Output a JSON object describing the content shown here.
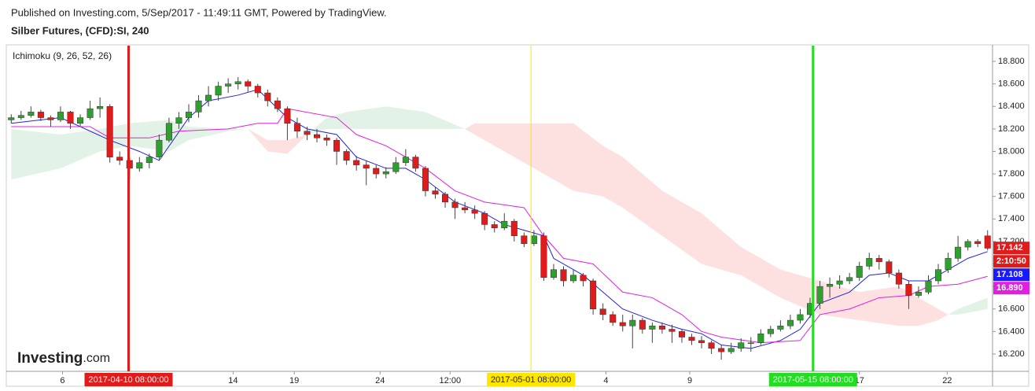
{
  "header": {
    "published": "Published on Investing.com, 5/Sep/2017 - 11:49:11 GMT, Powered by TradingView.",
    "symbol": "Silber Futures, (CFD):SI, 240"
  },
  "logo": {
    "brand": "Investing",
    "suffix": ".com"
  },
  "chart_data": {
    "type": "candlestick",
    "indicator": "Ichimoku (9, 26, 52, 26)",
    "up_color": "#2ea02e",
    "down_color": "#e01b1b",
    "xlim": [
      -0.5,
      99.5
    ],
    "ylim": [
      16.046,
      18.94
    ],
    "yticks": [
      {
        "value": 16.2,
        "label": "16.200"
      },
      {
        "value": 16.4,
        "label": "16.400"
      },
      {
        "value": 16.6,
        "label": "16.600"
      },
      {
        "value": 16.8,
        "label": "16.800"
      },
      {
        "value": 17.0,
        "label": "17.000"
      },
      {
        "value": 17.2,
        "label": "17.200"
      },
      {
        "value": 17.4,
        "label": "17.400"
      },
      {
        "value": 17.6,
        "label": "17.600"
      },
      {
        "value": 17.8,
        "label": "17.800"
      },
      {
        "value": 18.0,
        "label": "18.000"
      },
      {
        "value": 18.2,
        "label": "18.200"
      },
      {
        "value": 18.4,
        "label": "18.400"
      },
      {
        "value": 18.6,
        "label": "18.600"
      },
      {
        "value": 18.8,
        "label": "18.800"
      }
    ],
    "xticks": [
      {
        "value": 5.2,
        "label": "6"
      },
      {
        "value": 22.5,
        "label": "14"
      },
      {
        "value": 28.7,
        "label": "19"
      },
      {
        "value": 37.4,
        "label": "24"
      },
      {
        "value": 44.5,
        "label": "12:00"
      },
      {
        "value": 60.3,
        "label": "4"
      },
      {
        "value": 68.8,
        "label": "9"
      },
      {
        "value": 86.0,
        "label": "17"
      },
      {
        "value": 94.9,
        "label": "22"
      }
    ],
    "markers": [
      {
        "value": 11.9,
        "label": "2017-04-10 08:00:00",
        "color": "#e01b1b"
      },
      {
        "value": 52.7,
        "label": "2017-05-01 08:00:00",
        "color": "#ffe600"
      },
      {
        "value": 81.3,
        "label": "2017-05-15 08:00:00",
        "color": "#22dd22"
      }
    ],
    "candles": [
      [
        18.28,
        18.33,
        18.25,
        18.3
      ],
      [
        18.3,
        18.36,
        18.28,
        18.32
      ],
      [
        18.32,
        18.4,
        18.3,
        18.35
      ],
      [
        18.35,
        18.37,
        18.27,
        18.3
      ],
      [
        18.3,
        18.32,
        18.22,
        18.28
      ],
      [
        18.28,
        18.4,
        18.26,
        18.35
      ],
      [
        18.35,
        18.36,
        18.2,
        18.25
      ],
      [
        18.25,
        18.33,
        18.22,
        18.3
      ],
      [
        18.3,
        18.45,
        18.28,
        18.38
      ],
      [
        18.38,
        18.48,
        18.3,
        18.4
      ],
      [
        18.4,
        18.42,
        17.9,
        17.95
      ],
      [
        17.95,
        18.0,
        17.88,
        17.92
      ],
      [
        17.92,
        17.95,
        17.75,
        17.85
      ],
      [
        17.85,
        17.95,
        17.82,
        17.9
      ],
      [
        17.9,
        17.98,
        17.85,
        17.95
      ],
      [
        17.95,
        18.15,
        17.93,
        18.1
      ],
      [
        18.1,
        18.3,
        18.08,
        18.25
      ],
      [
        18.25,
        18.35,
        18.2,
        18.3
      ],
      [
        18.3,
        18.42,
        18.26,
        18.35
      ],
      [
        18.35,
        18.5,
        18.3,
        18.45
      ],
      [
        18.45,
        18.58,
        18.4,
        18.5
      ],
      [
        18.5,
        18.62,
        18.45,
        18.58
      ],
      [
        18.58,
        18.65,
        18.52,
        18.6
      ],
      [
        18.6,
        18.66,
        18.55,
        18.62
      ],
      [
        18.62,
        18.64,
        18.53,
        18.58
      ],
      [
        18.58,
        18.6,
        18.48,
        18.52
      ],
      [
        18.52,
        18.55,
        18.4,
        18.45
      ],
      [
        18.45,
        18.48,
        18.35,
        18.38
      ],
      [
        18.38,
        18.4,
        18.1,
        18.25
      ],
      [
        18.25,
        18.3,
        18.12,
        18.18
      ],
      [
        18.18,
        18.22,
        18.1,
        18.15
      ],
      [
        18.15,
        18.2,
        18.08,
        18.12
      ],
      [
        18.12,
        18.15,
        18.05,
        18.1
      ],
      [
        18.1,
        18.12,
        17.88,
        18.0
      ],
      [
        18.0,
        18.02,
        17.88,
        17.92
      ],
      [
        17.92,
        17.96,
        17.83,
        17.88
      ],
      [
        17.88,
        17.92,
        17.7,
        17.85
      ],
      [
        17.85,
        17.88,
        17.76,
        17.8
      ],
      [
        17.8,
        17.86,
        17.76,
        17.82
      ],
      [
        17.82,
        17.95,
        17.8,
        17.9
      ],
      [
        17.9,
        18.02,
        17.87,
        17.95
      ],
      [
        17.95,
        17.97,
        17.82,
        17.85
      ],
      [
        17.85,
        17.87,
        17.6,
        17.65
      ],
      [
        17.65,
        17.68,
        17.58,
        17.62
      ],
      [
        17.62,
        17.64,
        17.5,
        17.55
      ],
      [
        17.55,
        17.58,
        17.4,
        17.5
      ],
      [
        17.5,
        17.55,
        17.45,
        17.48
      ],
      [
        17.48,
        17.52,
        17.4,
        17.45
      ],
      [
        17.45,
        17.47,
        17.3,
        17.35
      ],
      [
        17.35,
        17.38,
        17.28,
        17.32
      ],
      [
        17.32,
        17.45,
        17.3,
        17.38
      ],
      [
        17.38,
        17.4,
        17.2,
        17.25
      ],
      [
        17.25,
        17.28,
        17.15,
        17.18
      ],
      [
        17.18,
        17.3,
        17.16,
        17.25
      ],
      [
        17.25,
        17.28,
        16.85,
        16.88
      ],
      [
        16.88,
        17.0,
        16.86,
        16.95
      ],
      [
        16.95,
        16.98,
        16.8,
        16.85
      ],
      [
        16.85,
        16.95,
        16.83,
        16.9
      ],
      [
        16.9,
        16.92,
        16.8,
        16.85
      ],
      [
        16.85,
        16.87,
        16.55,
        16.6
      ],
      [
        16.6,
        16.65,
        16.5,
        16.55
      ],
      [
        16.55,
        16.58,
        16.45,
        16.48
      ],
      [
        16.48,
        16.55,
        16.4,
        16.45
      ],
      [
        16.45,
        16.55,
        16.25,
        16.5
      ],
      [
        16.5,
        16.52,
        16.38,
        16.42
      ],
      [
        16.42,
        16.48,
        16.3,
        16.45
      ],
      [
        16.45,
        16.48,
        16.38,
        16.42
      ],
      [
        16.42,
        16.46,
        16.3,
        16.4
      ],
      [
        16.4,
        16.42,
        16.3,
        16.35
      ],
      [
        16.35,
        16.38,
        16.28,
        16.32
      ],
      [
        16.32,
        16.36,
        16.25,
        16.3
      ],
      [
        16.3,
        16.32,
        16.2,
        16.25
      ],
      [
        16.25,
        16.28,
        16.15,
        16.22
      ],
      [
        16.22,
        16.3,
        16.2,
        16.25
      ],
      [
        16.25,
        16.34,
        16.22,
        16.3
      ],
      [
        16.3,
        16.35,
        16.22,
        16.3
      ],
      [
        16.3,
        16.42,
        16.28,
        16.38
      ],
      [
        16.38,
        16.45,
        16.35,
        16.42
      ],
      [
        16.42,
        16.5,
        16.4,
        16.45
      ],
      [
        16.45,
        16.55,
        16.42,
        16.5
      ],
      [
        16.5,
        16.6,
        16.47,
        16.55
      ],
      [
        16.55,
        16.7,
        16.52,
        16.65
      ],
      [
        16.65,
        16.85,
        16.6,
        16.8
      ],
      [
        16.8,
        16.88,
        16.7,
        16.82
      ],
      [
        16.82,
        16.9,
        16.78,
        16.85
      ],
      [
        16.85,
        16.92,
        16.82,
        16.88
      ],
      [
        16.88,
        17.02,
        16.85,
        16.98
      ],
      [
        16.98,
        17.1,
        16.95,
        17.05
      ],
      [
        17.05,
        17.08,
        16.95,
        17.02
      ],
      [
        17.02,
        17.04,
        16.88,
        16.92
      ],
      [
        16.92,
        16.95,
        16.78,
        16.82
      ],
      [
        16.82,
        16.85,
        16.6,
        16.72
      ],
      [
        16.72,
        16.8,
        16.7,
        16.75
      ],
      [
        16.75,
        16.9,
        16.73,
        16.85
      ],
      [
        16.85,
        17.0,
        16.82,
        16.95
      ],
      [
        16.95,
        17.1,
        16.92,
        17.05
      ],
      [
        17.05,
        17.25,
        17.02,
        17.15
      ],
      [
        17.15,
        17.22,
        17.12,
        17.2
      ],
      [
        17.2,
        17.22,
        17.15,
        17.18
      ],
      [
        17.25,
        17.3,
        17.12,
        17.14
      ]
    ],
    "lines": [
      {
        "color": "#2222dd",
        "x": [
          0,
          5,
          10,
          13,
          15,
          18,
          20,
          23,
          25,
          28,
          30,
          33,
          35,
          38,
          40,
          42,
          45,
          48,
          50,
          52,
          54,
          55,
          58,
          60,
          62,
          65,
          68,
          70,
          72,
          75,
          78,
          80,
          82,
          85,
          87,
          89,
          91,
          93,
          95,
          97,
          99
        ],
        "values": [
          18.25,
          18.3,
          18.1,
          18.0,
          17.92,
          18.3,
          18.45,
          18.5,
          18.55,
          18.3,
          18.2,
          18.15,
          17.95,
          17.85,
          17.85,
          17.75,
          17.55,
          17.45,
          17.35,
          17.3,
          17.25,
          17.05,
          16.9,
          16.75,
          16.6,
          16.5,
          16.42,
          16.38,
          16.28,
          16.25,
          16.32,
          16.42,
          16.65,
          16.75,
          16.9,
          16.92,
          16.85,
          16.85,
          16.95,
          17.05,
          17.11
        ]
      },
      {
        "color": "#e020e0",
        "x": [
          0,
          8,
          10,
          14,
          17,
          22,
          25,
          27,
          28,
          33,
          35,
          38,
          42,
          45,
          48,
          52,
          54,
          56,
          59,
          62,
          65,
          68,
          70,
          72,
          76,
          80,
          82,
          85,
          88,
          91,
          93,
          96,
          99
        ],
        "values": [
          18.22,
          18.22,
          18.12,
          18.12,
          18.18,
          18.2,
          18.25,
          18.25,
          18.38,
          18.3,
          18.15,
          18.05,
          17.85,
          17.65,
          17.55,
          17.5,
          17.25,
          17.05,
          17.0,
          16.75,
          16.7,
          16.55,
          16.4,
          16.35,
          16.3,
          16.32,
          16.55,
          16.6,
          16.7,
          16.72,
          16.8,
          16.82,
          16.89
        ]
      }
    ],
    "cloud": {
      "colors": [
        "rgba(60,160,80,0.14)",
        "rgba(240,60,60,0.16)"
      ],
      "x": [
        0,
        5,
        9,
        12,
        16,
        18,
        22,
        24,
        26,
        28,
        30,
        32,
        34,
        38,
        42,
        46,
        47,
        52,
        57,
        60,
        62,
        66,
        70,
        74,
        78,
        82,
        86,
        90,
        92,
        94,
        95,
        96,
        99
      ],
      "span_a": [
        18.2,
        18.15,
        18.2,
        18.25,
        18.28,
        18.22,
        18.2,
        18.2,
        18.0,
        17.98,
        18.15,
        18.3,
        18.35,
        18.4,
        18.35,
        18.2,
        18.15,
        17.9,
        17.65,
        17.6,
        17.5,
        17.25,
        17.0,
        16.9,
        16.7,
        16.55,
        16.5,
        16.45,
        16.45,
        16.5,
        16.55,
        16.6,
        16.7
      ],
      "span_b": [
        17.75,
        17.85,
        18.0,
        18.05,
        18.0,
        18.1,
        18.18,
        18.2,
        18.1,
        18.1,
        18.15,
        18.2,
        18.2,
        18.2,
        18.2,
        18.2,
        18.25,
        18.25,
        18.25,
        18.05,
        17.95,
        17.65,
        17.45,
        17.15,
        16.95,
        16.85,
        16.75,
        16.8,
        16.7,
        16.6,
        16.55,
        16.55,
        16.6
      ]
    },
    "price_labels": [
      {
        "value": 17.142,
        "label": "17.142",
        "color": "#e01b1b"
      },
      {
        "value": 17.108,
        "label": "17.108",
        "color": "#1a1aff"
      },
      {
        "value": 16.89,
        "label": "16.890",
        "color": "#e020e0"
      }
    ],
    "countdown": "2:10:50"
  }
}
